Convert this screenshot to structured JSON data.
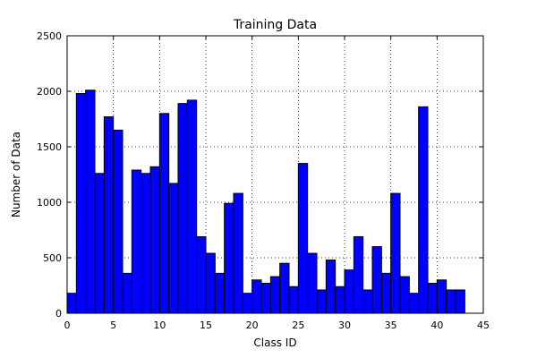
{
  "chart_data": {
    "type": "bar",
    "title": "Training Data",
    "xlabel": "Class ID",
    "ylabel": "Number of Data",
    "xlim": [
      0,
      45
    ],
    "ylim": [
      0,
      2500
    ],
    "xticks": [
      0,
      5,
      10,
      15,
      20,
      25,
      30,
      35,
      40,
      45
    ],
    "yticks": [
      0,
      500,
      1000,
      1500,
      2000,
      2500
    ],
    "grid": true,
    "bar_color": "#0000ff",
    "edge_color": "#000000",
    "bar_width": 1,
    "categories": [
      0,
      1,
      2,
      3,
      4,
      5,
      6,
      7,
      8,
      9,
      10,
      11,
      12,
      13,
      14,
      15,
      16,
      17,
      18,
      19,
      20,
      21,
      22,
      23,
      24,
      25,
      26,
      27,
      28,
      29,
      30,
      31,
      32,
      33,
      34,
      35,
      36,
      37,
      38,
      39,
      40,
      41,
      42
    ],
    "values": [
      180,
      1980,
      2010,
      1260,
      1770,
      1650,
      360,
      1290,
      1260,
      1320,
      1800,
      1170,
      1890,
      1920,
      690,
      540,
      360,
      990,
      1080,
      180,
      300,
      270,
      330,
      450,
      240,
      1350,
      540,
      210,
      480,
      240,
      390,
      690,
      210,
      600,
      360,
      1080,
      330,
      180,
      1860,
      270,
      300,
      210,
      210
    ]
  }
}
